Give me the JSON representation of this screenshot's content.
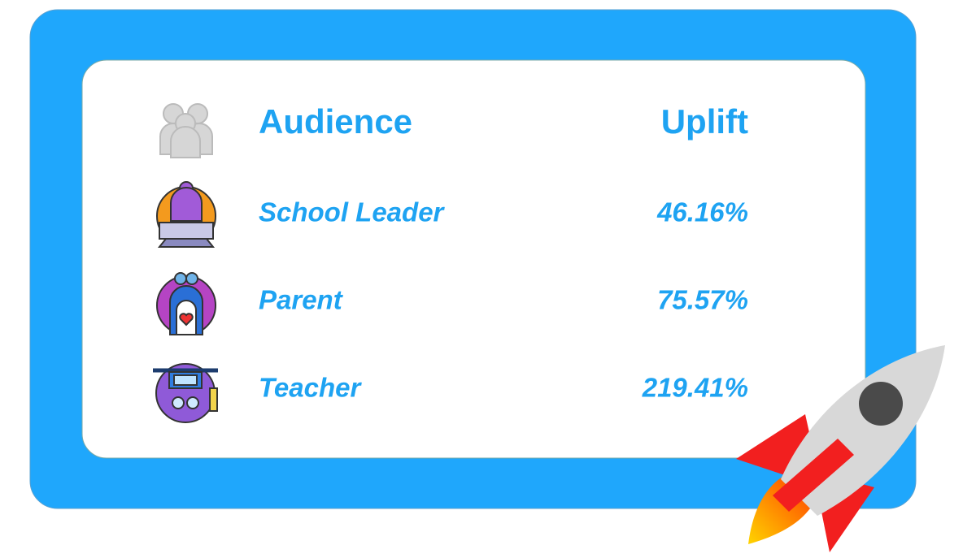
{
  "table": {
    "header": [
      "Audience",
      "Uplift"
    ],
    "rows": [
      [
        "School Leader",
        "46.16%"
      ],
      [
        "Parent",
        "75.57%"
      ],
      [
        "Teacher",
        "219.41%"
      ]
    ]
  }
}
